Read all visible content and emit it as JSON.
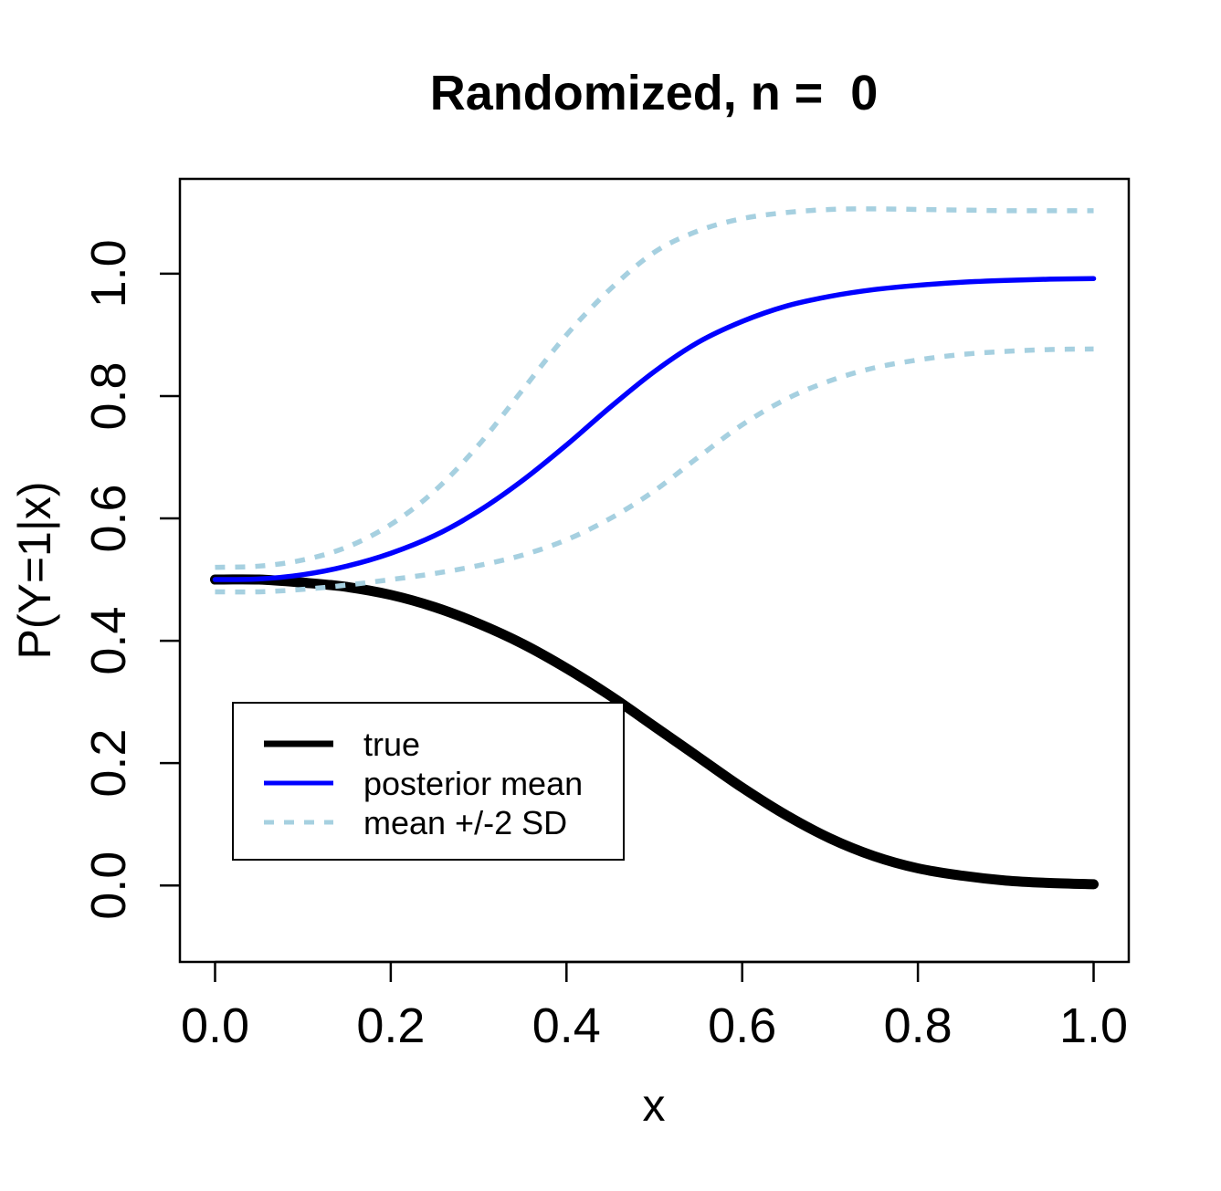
{
  "chart_data": {
    "type": "line",
    "title": "Randomized, n =  0",
    "xlabel": "x",
    "ylabel": "P(Y=1|x)",
    "xlim": [
      -0.04,
      1.04
    ],
    "ylim": [
      -0.125,
      1.155
    ],
    "x_ticks": [
      0.0,
      0.2,
      0.4,
      0.6,
      0.8,
      1.0
    ],
    "x_tick_labels": [
      "0.0",
      "0.2",
      "0.4",
      "0.6",
      "0.8",
      "1.0"
    ],
    "y_ticks": [
      0.0,
      0.2,
      0.4,
      0.6,
      0.8,
      1.0
    ],
    "y_tick_labels": [
      "0.0",
      "0.2",
      "0.4",
      "0.6",
      "0.8",
      "1.0"
    ],
    "grid": false,
    "legend_position": "bottom-left",
    "x": [
      0.0,
      0.05,
      0.1,
      0.15,
      0.2,
      0.25,
      0.3,
      0.35,
      0.4,
      0.45,
      0.5,
      0.55,
      0.6,
      0.65,
      0.7,
      0.75,
      0.8,
      0.85,
      0.9,
      0.95,
      1.0
    ],
    "series": [
      {
        "name": "true",
        "color": "#000000",
        "style": "solid",
        "weight": "thick",
        "values": [
          0.5,
          0.5,
          0.495,
          0.488,
          0.475,
          0.455,
          0.428,
          0.395,
          0.355,
          0.31,
          0.26,
          0.21,
          0.16,
          0.115,
          0.077,
          0.048,
          0.028,
          0.016,
          0.008,
          0.004,
          0.002
        ]
      },
      {
        "name": "posterior mean",
        "color": "#0000ff",
        "style": "solid",
        "weight": "medium",
        "values": [
          0.5,
          0.501,
          0.508,
          0.522,
          0.543,
          0.572,
          0.612,
          0.662,
          0.72,
          0.782,
          0.84,
          0.888,
          0.922,
          0.947,
          0.963,
          0.974,
          0.981,
          0.986,
          0.989,
          0.991,
          0.992
        ]
      },
      {
        "name": "mean +2 SD",
        "color": "#a6d0e0",
        "style": "dashed",
        "weight": "medium",
        "values": [
          0.52,
          0.522,
          0.532,
          0.553,
          0.59,
          0.645,
          0.72,
          0.81,
          0.9,
          0.975,
          1.035,
          1.07,
          1.09,
          1.1,
          1.105,
          1.106,
          1.105,
          1.104,
          1.103,
          1.103,
          1.103
        ]
      },
      {
        "name": "mean -2 SD",
        "color": "#a6d0e0",
        "style": "dashed",
        "weight": "medium",
        "values": [
          0.48,
          0.48,
          0.484,
          0.491,
          0.5,
          0.51,
          0.523,
          0.54,
          0.565,
          0.6,
          0.645,
          0.7,
          0.753,
          0.795,
          0.825,
          0.846,
          0.859,
          0.868,
          0.873,
          0.876,
          0.877
        ]
      }
    ],
    "legend": [
      {
        "label": "true",
        "color": "#000000",
        "style": "solid"
      },
      {
        "label": "posterior mean",
        "color": "#0000ff",
        "style": "solid"
      },
      {
        "label": "mean +/-2 SD",
        "color": "#a6d0e0",
        "style": "dashed"
      }
    ]
  }
}
